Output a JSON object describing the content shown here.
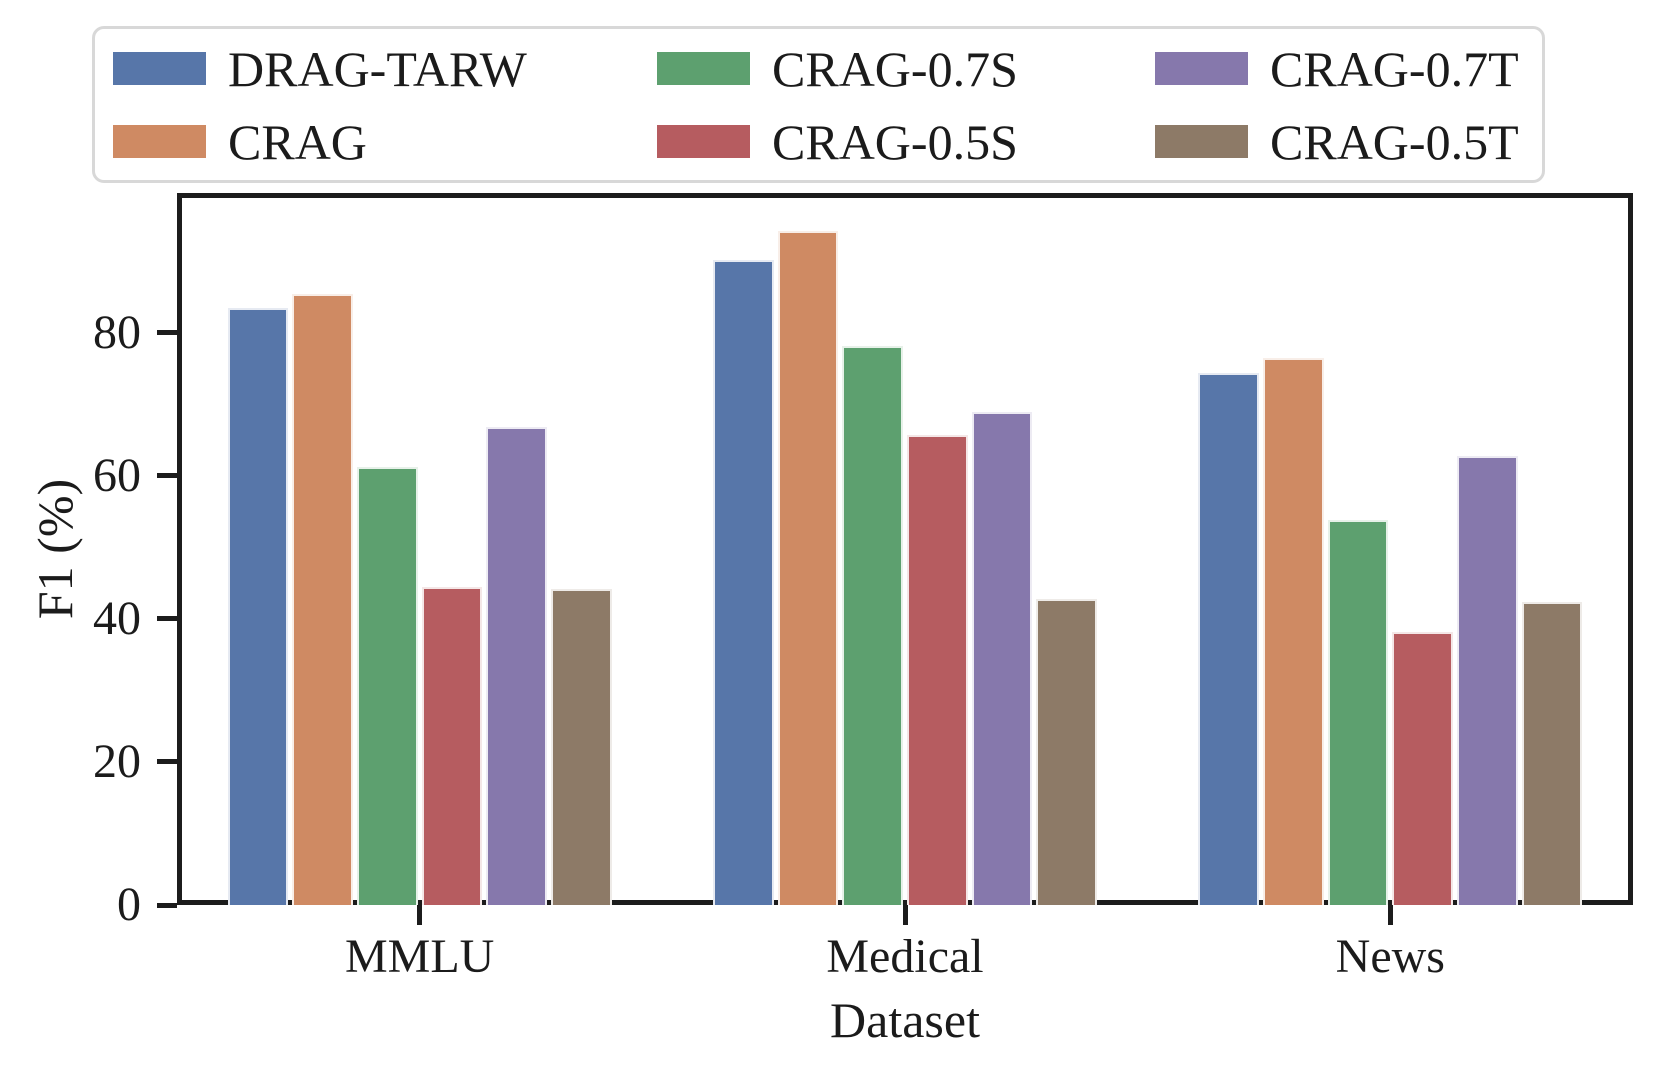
{
  "figure": {
    "background": "#ffffff",
    "text_color": "#1b1b1b",
    "spine_color": "#1c1c1c",
    "legend_border_color": "#d8d8d8"
  },
  "chart_data": {
    "type": "bar",
    "title": "",
    "xlabel": "Dataset",
    "ylabel": "F1 (%)",
    "categories": [
      "MMLU",
      "Medical",
      "News"
    ],
    "series": [
      {
        "name": "DRAG-TARW",
        "color": "#5776A9",
        "values": [
          83.5,
          90.2,
          74.4
        ]
      },
      {
        "name": "CRAG",
        "color": "#CF8A63",
        "values": [
          85.4,
          94.2,
          76.4
        ]
      },
      {
        "name": "CRAG-0.7S",
        "color": "#5DA06F",
        "values": [
          61.2,
          78.1,
          53.8
        ]
      },
      {
        "name": "CRAG-0.5S",
        "color": "#B65C60",
        "values": [
          44.4,
          65.7,
          38.2
        ]
      },
      {
        "name": "CRAG-0.7T",
        "color": "#8678AC",
        "values": [
          66.8,
          68.9,
          62.8
        ]
      },
      {
        "name": "CRAG-0.5T",
        "color": "#8D7A67",
        "values": [
          44.1,
          42.7,
          42.3
        ]
      }
    ],
    "yticks": [
      0,
      20,
      40,
      60,
      80
    ],
    "ylim": [
      0,
      99.5
    ],
    "legend_position": "top",
    "legend_columns": 3,
    "grid": false
  }
}
